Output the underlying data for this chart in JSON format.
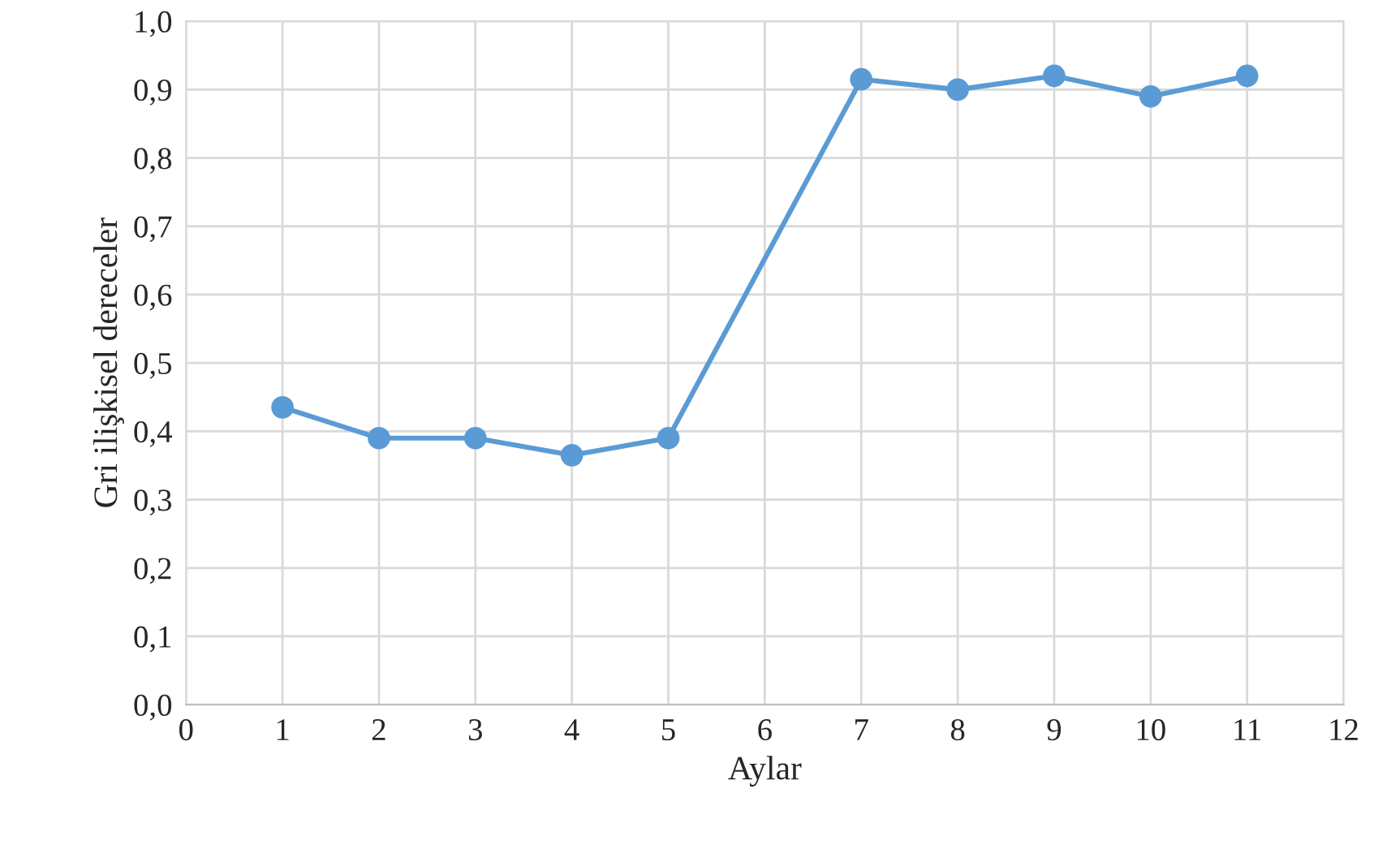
{
  "chart_data": {
    "type": "line",
    "xlabel": "Aylar",
    "ylabel": "Gri ilişkisel dereceler",
    "series": [
      {
        "color": "#5b9bd5",
        "x": [
          1,
          2,
          3,
          4,
          5,
          7,
          8,
          9,
          10,
          11
        ],
        "values": [
          0.435,
          0.39,
          0.39,
          0.365,
          0.39,
          0.915,
          0.9,
          0.92,
          0.89,
          0.92
        ]
      }
    ],
    "xlim": [
      0,
      12
    ],
    "xticks": [
      0,
      1,
      2,
      3,
      4,
      5,
      6,
      7,
      8,
      9,
      10,
      11,
      12
    ],
    "ylim": [
      0,
      1.0
    ],
    "yticks": [
      {
        "value": 0,
        "label": "0,0"
      },
      {
        "value": 0.1,
        "label": "0,1"
      },
      {
        "value": 0.2,
        "label": "0,2"
      },
      {
        "value": 0.3,
        "label": "0,3"
      },
      {
        "value": 0.4,
        "label": "0,4"
      },
      {
        "value": 0.5,
        "label": "0,5"
      },
      {
        "value": 0.6,
        "label": "0,6"
      },
      {
        "value": 0.7,
        "label": "0,7"
      },
      {
        "value": 0.8,
        "label": "0,8"
      },
      {
        "value": 0.9,
        "label": "0,9"
      },
      {
        "value": 1.0,
        "label": "1,0"
      }
    ],
    "grid": true,
    "marker": "circle",
    "line_style": "solid",
    "legend": false
  }
}
